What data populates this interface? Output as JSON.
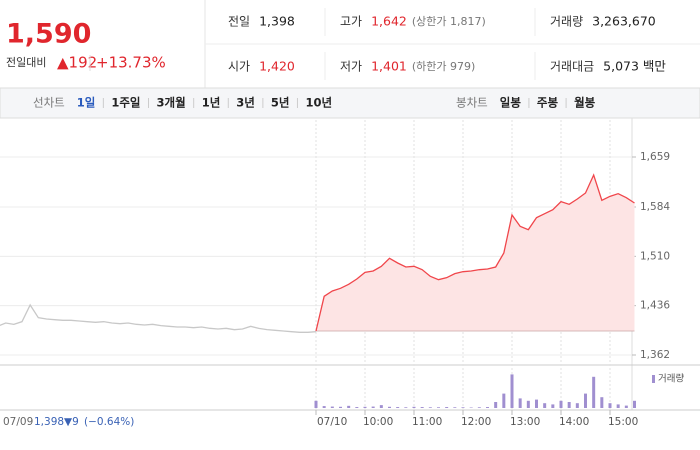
{
  "quote": {
    "price": "1,590",
    "change_label": "전일대비",
    "change": "▲192",
    "rate": "+13.73%",
    "table": [
      [
        {
          "label": "전일",
          "value": "1,398"
        },
        {
          "label": "고가",
          "value": "1,642",
          "extra": "(상한가 1,817)"
        },
        {
          "label": "거래량",
          "value": "3,263,670"
        }
      ],
      [
        {
          "label": "시가",
          "value": "1,420"
        },
        {
          "label": "저가",
          "value": "1,401",
          "extra": "(하한가 979)"
        },
        {
          "label": "거래대금",
          "value": "5,073 백만"
        }
      ]
    ]
  },
  "tabs": {
    "line_label": "선차트",
    "line_items": [
      "1일",
      "1주일",
      "3개월",
      "1년",
      "3년",
      "5년",
      "10년"
    ],
    "selected": 0,
    "candle_label": "봉차트",
    "candle_items": [
      "일봉",
      "주봉",
      "월봉"
    ]
  },
  "chart_data": {
    "type": "line",
    "x": [
      "09:00",
      "09:10",
      "09:20",
      "09:30",
      "09:40",
      "09:50",
      "10:00",
      "10:10",
      "10:20",
      "10:30",
      "10:40",
      "10:50",
      "11:00",
      "11:10",
      "11:20",
      "11:30",
      "11:40",
      "11:50",
      "12:00",
      "12:10",
      "12:20",
      "12:30",
      "12:40",
      "12:50",
      "13:00",
      "13:10",
      "13:20",
      "13:30",
      "13:40",
      "13:50",
      "14:00",
      "14:10",
      "14:20",
      "14:30",
      "14:40",
      "14:50",
      "15:00",
      "15:10",
      "15:20",
      "15:30"
    ],
    "days": [
      {
        "date": "07/09",
        "color": "#c8c8c8",
        "values": [
          1405,
          1410,
          1408,
          1412,
          1437,
          1418,
          1416,
          1415,
          1414,
          1414,
          1413,
          1412,
          1411,
          1412,
          1410,
          1409,
          1410,
          1408,
          1407,
          1408,
          1406,
          1405,
          1404,
          1404,
          1403,
          1404,
          1402,
          1401,
          1402,
          1400,
          1401,
          1405,
          1402,
          1400,
          1399,
          1398,
          1397,
          1396,
          1396,
          1397
        ]
      },
      {
        "date": "07/10",
        "color": "#f0464b",
        "fill": "#fde4e4",
        "values": [
          1398,
          1450,
          1458,
          1462,
          1468,
          1476,
          1486,
          1488,
          1495,
          1507,
          1500,
          1494,
          1495,
          1490,
          1480,
          1475,
          1478,
          1484,
          1487,
          1488,
          1490,
          1491,
          1494,
          1515,
          1572,
          1555,
          1550,
          1568,
          1574,
          1580,
          1592,
          1588,
          1596,
          1605,
          1632,
          1594,
          1600,
          1604,
          1598,
          1590
        ]
      }
    ],
    "baseline": 1398,
    "ylim": [
      1347,
      1707
    ],
    "yticks": [
      {
        "value": 1362,
        "label": "1,362"
      },
      {
        "value": 1436,
        "label": "1,436"
      },
      {
        "value": 1510,
        "label": "1,510"
      },
      {
        "value": 1584,
        "label": "1,584"
      },
      {
        "value": 1659,
        "label": "1,659"
      }
    ],
    "xticks": [
      "10:00",
      "11:00",
      "12:00",
      "13:00",
      "14:00",
      "15:00"
    ],
    "grid": true,
    "volume": {
      "name": "거래량",
      "color": "#a08fd0",
      "vlim": [
        0,
        150000
      ],
      "values": [
        30000,
        8000,
        6000,
        5000,
        9000,
        4000,
        5000,
        6000,
        12000,
        5000,
        4000,
        3000,
        5000,
        4000,
        3000,
        3000,
        4000,
        3000,
        3000,
        2000,
        3000,
        4000,
        25000,
        60000,
        140000,
        40000,
        30000,
        35000,
        20000,
        15000,
        30000,
        25000,
        20000,
        60000,
        130000,
        45000,
        20000,
        15000,
        10000,
        30000
      ]
    },
    "prev_summary": {
      "close": "1,398",
      "change": "▼9",
      "rate": "(−0.64%)"
    }
  }
}
